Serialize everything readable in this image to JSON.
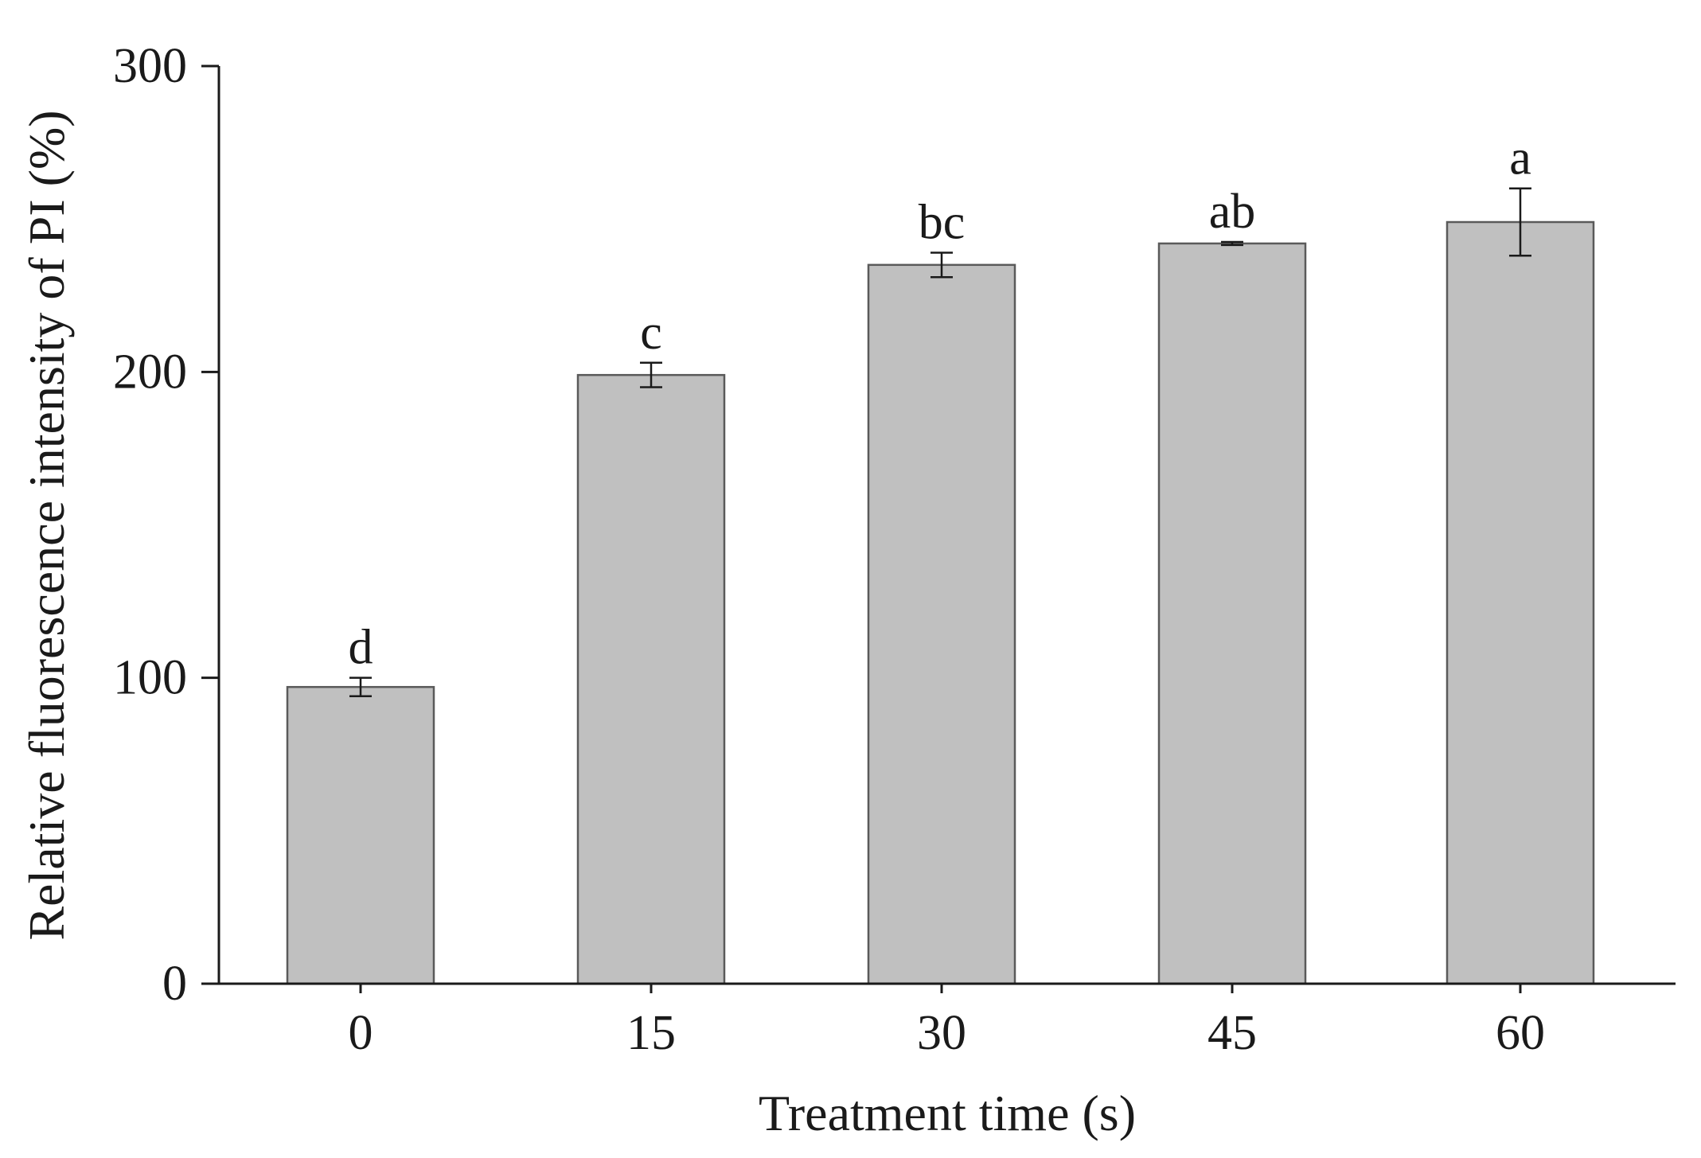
{
  "chart_data": {
    "type": "bar",
    "categories": [
      "0",
      "15",
      "30",
      "45",
      "60"
    ],
    "values": [
      97,
      199,
      235,
      242,
      249
    ],
    "errors": [
      3,
      4,
      4,
      0.5,
      11
    ],
    "significance_letters": [
      "d",
      "c",
      "bc",
      "ab",
      "a"
    ],
    "title": "",
    "xlabel": "Treatment time (s)",
    "ylabel": "Relative fluorescence intensity of PI (%)",
    "ylim": [
      0,
      300
    ],
    "yticks": [
      "0",
      "100",
      "200",
      "300"
    ],
    "grid": false,
    "legend": "none",
    "colors": {
      "bar_fill": "#c0c0c0",
      "bar_stroke": "#5a5a5a",
      "axis": "#1a1a1a"
    }
  }
}
